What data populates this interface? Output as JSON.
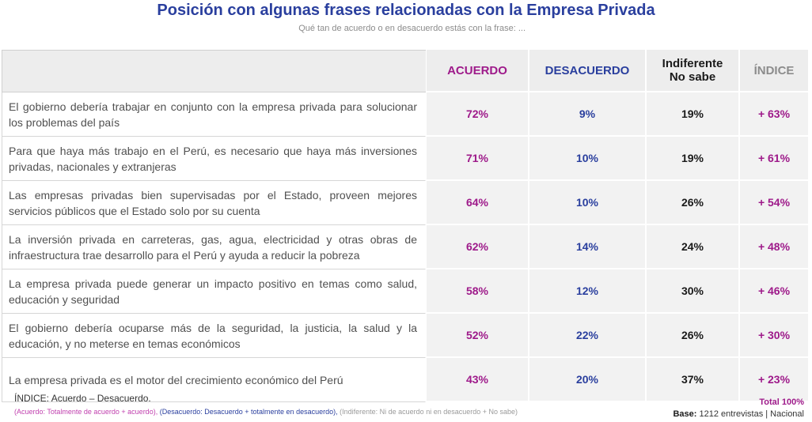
{
  "header": {
    "title": "Posición con algunas frases relacionadas con la Empresa Privada",
    "subtitle": "Qué tan de acuerdo o en desacuerdo estás con la frase: ..."
  },
  "colors": {
    "acuerdo": "#9e1a8a",
    "desacuerdo": "#2a3f9e",
    "indiferente": "#1a1a1a",
    "indice": "#9e1a8a"
  },
  "chart_data": {
    "type": "table",
    "title": "Posición con algunas frases relacionadas con la Empresa Privada",
    "subtitle": "Qué tan de acuerdo o en desacuerdo estás con la frase: ...",
    "columns": [
      "ACUERDO",
      "DESACUERDO",
      "Indiferente No sabe",
      "ÍNDICE"
    ],
    "rows": [
      {
        "statement": "El gobierno debería trabajar en conjunto con la empresa privada para solucionar los problemas del país",
        "acuerdo": "72%",
        "desacuerdo": "9%",
        "indiferente": "19%",
        "indice": "+ 63%"
      },
      {
        "statement": "Para que haya más trabajo en el Perú, es necesario que haya más inversiones privadas, nacionales y extranjeras",
        "acuerdo": "71%",
        "desacuerdo": "10%",
        "indiferente": "19%",
        "indice": "+ 61%"
      },
      {
        "statement": "Las empresas privadas bien supervisadas por el Estado, proveen mejores servicios públicos que el Estado solo por su cuenta",
        "acuerdo": "64%",
        "desacuerdo": "10%",
        "indiferente": "26%",
        "indice": "+ 54%"
      },
      {
        "statement": "La inversión privada en carreteras, gas, agua, electricidad y otras obras de infraestructura trae desarrollo para el Perú y ayuda a reducir la pobreza",
        "acuerdo": "62%",
        "desacuerdo": "14%",
        "indiferente": "24%",
        "indice": "+ 48%"
      },
      {
        "statement": "La empresa privada puede generar un impacto positivo en temas como salud, educación y seguridad",
        "acuerdo": "58%",
        "desacuerdo": "12%",
        "indiferente": "30%",
        "indice": "+ 46%"
      },
      {
        "statement": "El gobierno debería ocuparse más de la seguridad, la justicia, la salud y la educación, y no meterse en temas económicos",
        "acuerdo": "52%",
        "desacuerdo": "22%",
        "indiferente": "26%",
        "indice": "+ 30%"
      },
      {
        "statement": "La empresa privada es el motor del crecimiento económico del Perú",
        "acuerdo": "43%",
        "desacuerdo": "20%",
        "indiferente": "37%",
        "indice": "+ 23%"
      }
    ]
  },
  "table": {
    "headers": {
      "acuerdo": "ACUERDO",
      "desacuerdo": "DESACUERDO",
      "indiferente_line1": "Indiferente",
      "indiferente_line2": "No sabe",
      "indice": "ÍNDICE"
    }
  },
  "footer": {
    "index_label": "ÍNDICE:",
    "index_formula": "Acuerdo – Desacuerdo.",
    "legend_acuerdo": "(Acuerdo: Totalmente de acuerdo + acuerdo),",
    "legend_desacuerdo": "(Desacuerdo:  Desacuerdo + totalmente en desacuerdo),",
    "legend_indiferente": "(Indiferente: Ni de acuerdo ni en desacuerdo + No sabe)",
    "total": "Total 100%",
    "base_label": "Base:",
    "base_value": "1212 entrevistas  |  Nacional"
  }
}
